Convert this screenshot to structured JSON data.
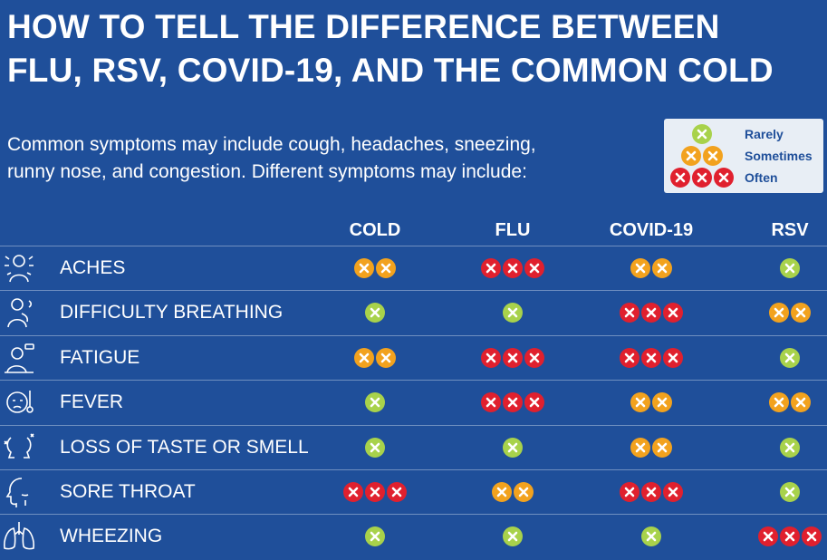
{
  "title": {
    "line1": "HOW TO TELL THE DIFFERENCE BETWEEN",
    "line2": "FLU, RSV, COVID-19, AND THE COMMON COLD"
  },
  "intro": {
    "line1": "Common symptoms may include cough, headaches, sneezing,",
    "line2": "runny nose, and congestion. Different symptoms may include:"
  },
  "legend": [
    {
      "level": "rarely",
      "count": 1,
      "label": "Rarely"
    },
    {
      "level": "sometimes",
      "count": 2,
      "label": "Sometimes"
    },
    {
      "level": "often",
      "count": 3,
      "label": "Often"
    }
  ],
  "colors": {
    "background": "#1f4f9a",
    "rarely": "#a8d24b",
    "sometimes": "#f2a21e",
    "often": "#e0202e"
  },
  "columns": [
    "COLD",
    "FLU",
    "COVID-19",
    "RSV"
  ],
  "rows": [
    {
      "label": "ACHES",
      "icon": "aches-icon",
      "values": [
        "sometimes",
        "often",
        "sometimes",
        "rarely"
      ]
    },
    {
      "label": "DIFFICULTY BREATHING",
      "icon": "breathing-icon",
      "values": [
        "rarely",
        "rarely",
        "often",
        "sometimes"
      ]
    },
    {
      "label": "FATIGUE",
      "icon": "fatigue-icon",
      "values": [
        "sometimes",
        "often",
        "often",
        "rarely"
      ]
    },
    {
      "label": "FEVER",
      "icon": "fever-icon",
      "values": [
        "rarely",
        "often",
        "sometimes",
        "sometimes"
      ]
    },
    {
      "label": "LOSS OF TASTE OR SMELL",
      "icon": "taste-smell-icon",
      "values": [
        "rarely",
        "rarely",
        "sometimes",
        "rarely"
      ]
    },
    {
      "label": "SORE THROAT",
      "icon": "sore-throat-icon",
      "values": [
        "often",
        "sometimes",
        "often",
        "rarely"
      ]
    },
    {
      "label": "WHEEZING",
      "icon": "lungs-icon",
      "values": [
        "rarely",
        "rarely",
        "rarely",
        "often"
      ]
    }
  ]
}
